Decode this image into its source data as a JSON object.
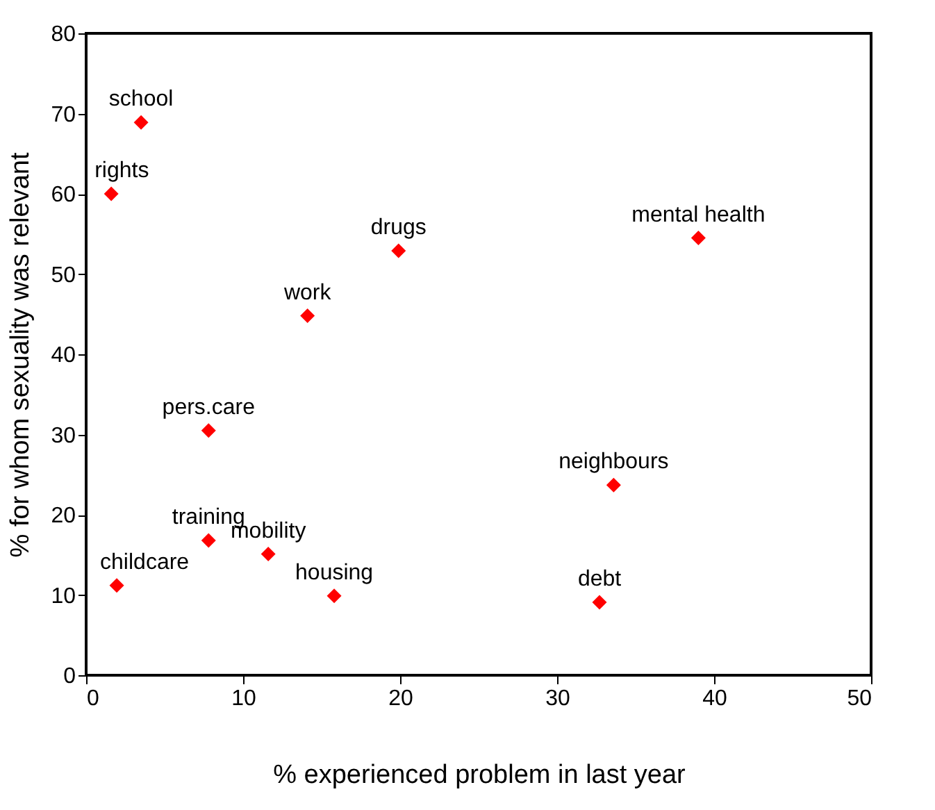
{
  "chart_data": {
    "type": "scatter",
    "xlabel": "% experienced problem  in last year",
    "ylabel": "% for whom sexuality was relevant",
    "x": [
      3.5,
      1.6,
      19.9,
      39.0,
      14.1,
      7.8,
      33.6,
      7.8,
      11.6,
      1.95,
      15.8,
      32.7
    ],
    "series": [
      {
        "color": "#ff0000",
        "values": [
          68.9,
          60.0,
          52.9,
          54.5,
          44.8,
          30.5,
          23.7,
          16.8,
          15.1,
          11.2,
          9.9,
          9.1
        ],
        "value_labels": [
          "school",
          "rights",
          "drugs",
          "mental health",
          "work",
          "pers.care",
          "neighbours",
          "training",
          "mobility",
          "childcare",
          "housing",
          "debt"
        ]
      }
    ],
    "xlim": [
      0,
      50
    ],
    "xticks": [
      0,
      10,
      20,
      30,
      40,
      50
    ],
    "ylim": [
      0,
      80
    ],
    "yticks": [
      0,
      10,
      20,
      30,
      40,
      50,
      60,
      70,
      80
    ],
    "marker": "diamond",
    "grid": false
  }
}
